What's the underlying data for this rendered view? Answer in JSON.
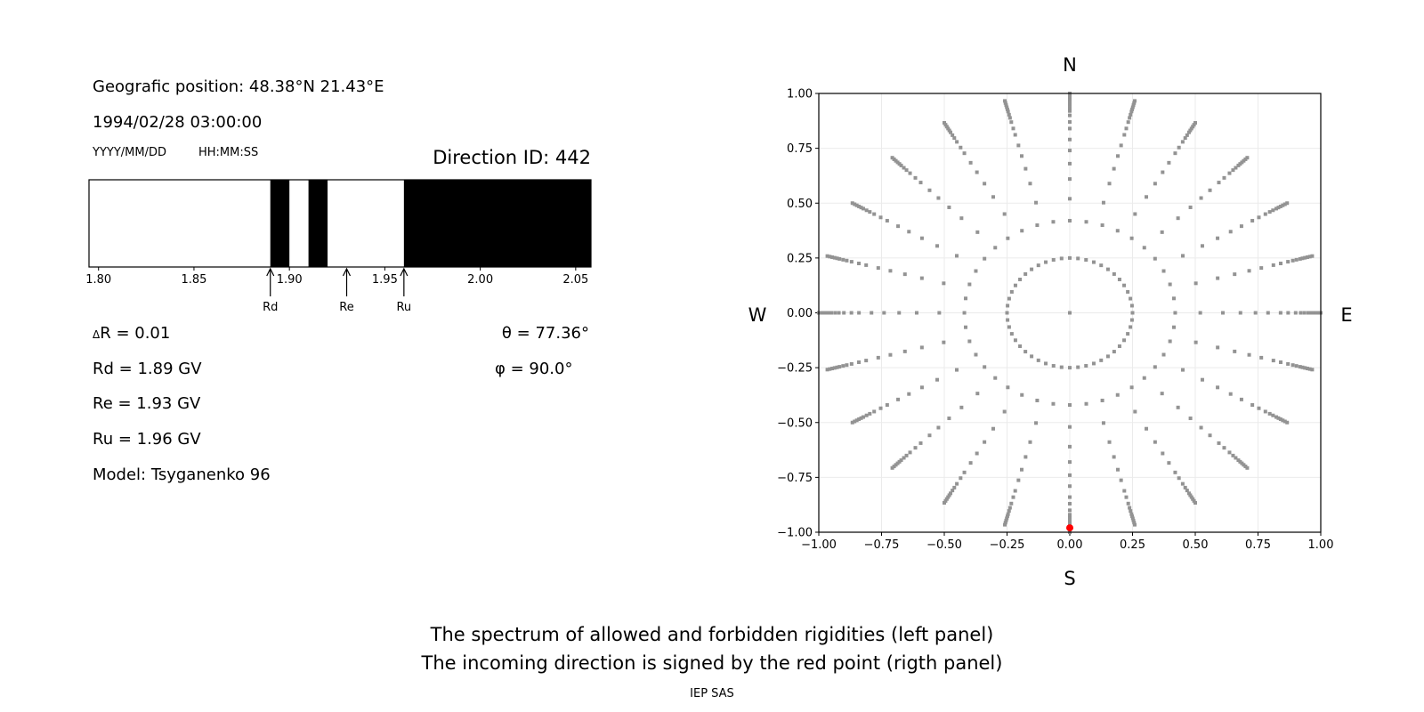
{
  "left_panel": {
    "position_text": "Geografic position: 48.38°N 21.43°E",
    "datetime_text": "1994/02/28 03:00:00",
    "date_format_label": "YYYY/MM/DD",
    "time_format_label": "HH:MM:SS",
    "direction_id_text": "Direction ID: 442",
    "delta_r_symbol": "Δ",
    "delta_r_text": "R = 0.01",
    "rd_text": "Rd = 1.89 GV",
    "re_text": "Re = 1.93 GV",
    "ru_text": "Ru = 1.96 GV",
    "model_text": "Model: Tsyganenko 96",
    "theta_text": "θ = 77.36°",
    "phi_text": "φ = 90.0°"
  },
  "footer": {
    "line1": "The spectrum of allowed and forbidden rigidities (left panel)",
    "line2": "The incoming direction is signed by the red point (rigth panel)",
    "credit": "IEP SAS"
  },
  "chart_data": [
    {
      "type": "bar",
      "subtype": "rigidity-spectrum",
      "xlim": [
        1.795,
        2.058
      ],
      "xticks": [
        "1.80",
        "1.85",
        "1.90",
        "1.95",
        "2.00",
        "2.05"
      ],
      "forbidden_bands": [
        [
          1.89,
          1.9
        ],
        [
          1.91,
          1.92
        ],
        [
          1.96,
          2.058
        ]
      ],
      "allowed_color": "#ffffff",
      "forbidden_color": "#000000",
      "markers": [
        {
          "label": "Rd",
          "value": 1.89
        },
        {
          "label": "Re",
          "value": 1.93
        },
        {
          "label": "Ru",
          "value": 1.96
        }
      ]
    },
    {
      "type": "scatter",
      "xlim": [
        -1,
        1
      ],
      "ylim": [
        -1,
        1
      ],
      "xticks": [
        "−1.00",
        "−0.75",
        "−0.50",
        "−0.25",
        "0.00",
        "0.25",
        "0.50",
        "0.75",
        "1.00"
      ],
      "yticks": [
        "1.00",
        "0.75",
        "0.50",
        "0.25",
        "0.00",
        "−0.25",
        "−0.50",
        "−0.75",
        "−1.00"
      ],
      "grid": true,
      "compass": {
        "north": "N",
        "south": "S",
        "west": "W",
        "east": "E"
      },
      "point_color": "#939393",
      "spoke_azimuth_step_deg": 15,
      "spoke_radii": [
        1.0,
        0.99,
        0.98,
        0.97,
        0.96,
        0.95,
        0.935,
        0.92,
        0.9,
        0.87,
        0.84,
        0.79,
        0.74,
        0.68,
        0.61,
        0.52
      ],
      "rings": [
        {
          "r": 0.42,
          "count": 40
        },
        {
          "r": 0.25,
          "count": 48
        }
      ],
      "center_point": [
        0,
        0
      ],
      "highlight": {
        "x": 0.0,
        "y": -0.98,
        "color": "#ff0000"
      }
    }
  ]
}
